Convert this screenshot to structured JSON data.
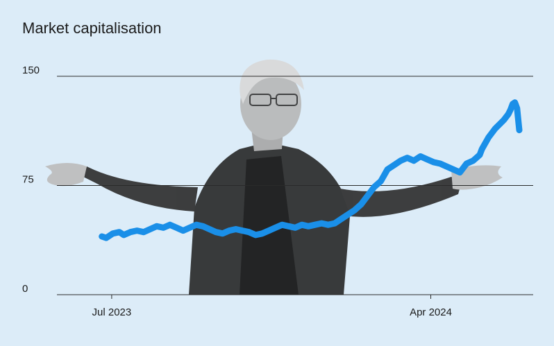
{
  "chart_data": {
    "type": "line",
    "title": "Market capitalisation",
    "xlabel": "",
    "ylabel": "",
    "ylim": [
      0,
      150
    ],
    "yticks": [
      0,
      75,
      150
    ],
    "x_tick_labels": [
      "Jul 2023",
      "Apr 2024"
    ],
    "x_tick_values": [
      0.115,
      0.785
    ],
    "grid": "horizontal",
    "colors": {
      "line": "#1a8fe8",
      "background": "#dcecf8",
      "grid": "#2a2a2a"
    },
    "series": [
      {
        "x": [
          0.05,
          0.06,
          0.075,
          0.09,
          0.1,
          0.115,
          0.13,
          0.145,
          0.16,
          0.175,
          0.19,
          0.205,
          0.22,
          0.235,
          0.25,
          0.265,
          0.28,
          0.295,
          0.31,
          0.325,
          0.34,
          0.355,
          0.37,
          0.385,
          0.4,
          0.415,
          0.43,
          0.445,
          0.46,
          0.475,
          0.49,
          0.505,
          0.52,
          0.535,
          0.55,
          0.565,
          0.58,
          0.595,
          0.61,
          0.625,
          0.64,
          0.655,
          0.67,
          0.685,
          0.7,
          0.715,
          0.73,
          0.745,
          0.76,
          0.775,
          0.79,
          0.805,
          0.82,
          0.835,
          0.85,
          0.865,
          0.88,
          0.895,
          0.91,
          0.915,
          0.93,
          0.945,
          0.955,
          0.965,
          0.975,
          0.98,
          0.985,
          0.99,
          0.995,
          1.0
        ],
        "y": [
          40,
          39,
          42,
          43,
          41,
          43,
          44,
          43,
          45,
          47,
          46,
          48,
          46,
          44,
          46,
          48,
          47,
          45,
          43,
          42,
          44,
          45,
          44,
          43,
          41,
          42,
          44,
          46,
          48,
          47,
          46,
          48,
          47,
          48,
          49,
          48,
          49,
          52,
          55,
          58,
          62,
          68,
          74,
          78,
          86,
          89,
          92,
          94,
          92,
          95,
          93,
          91,
          90,
          88,
          86,
          84,
          90,
          92,
          96,
          100,
          108,
          114,
          117,
          120,
          124,
          127,
          131,
          132,
          128,
          113
        ]
      }
    ]
  }
}
